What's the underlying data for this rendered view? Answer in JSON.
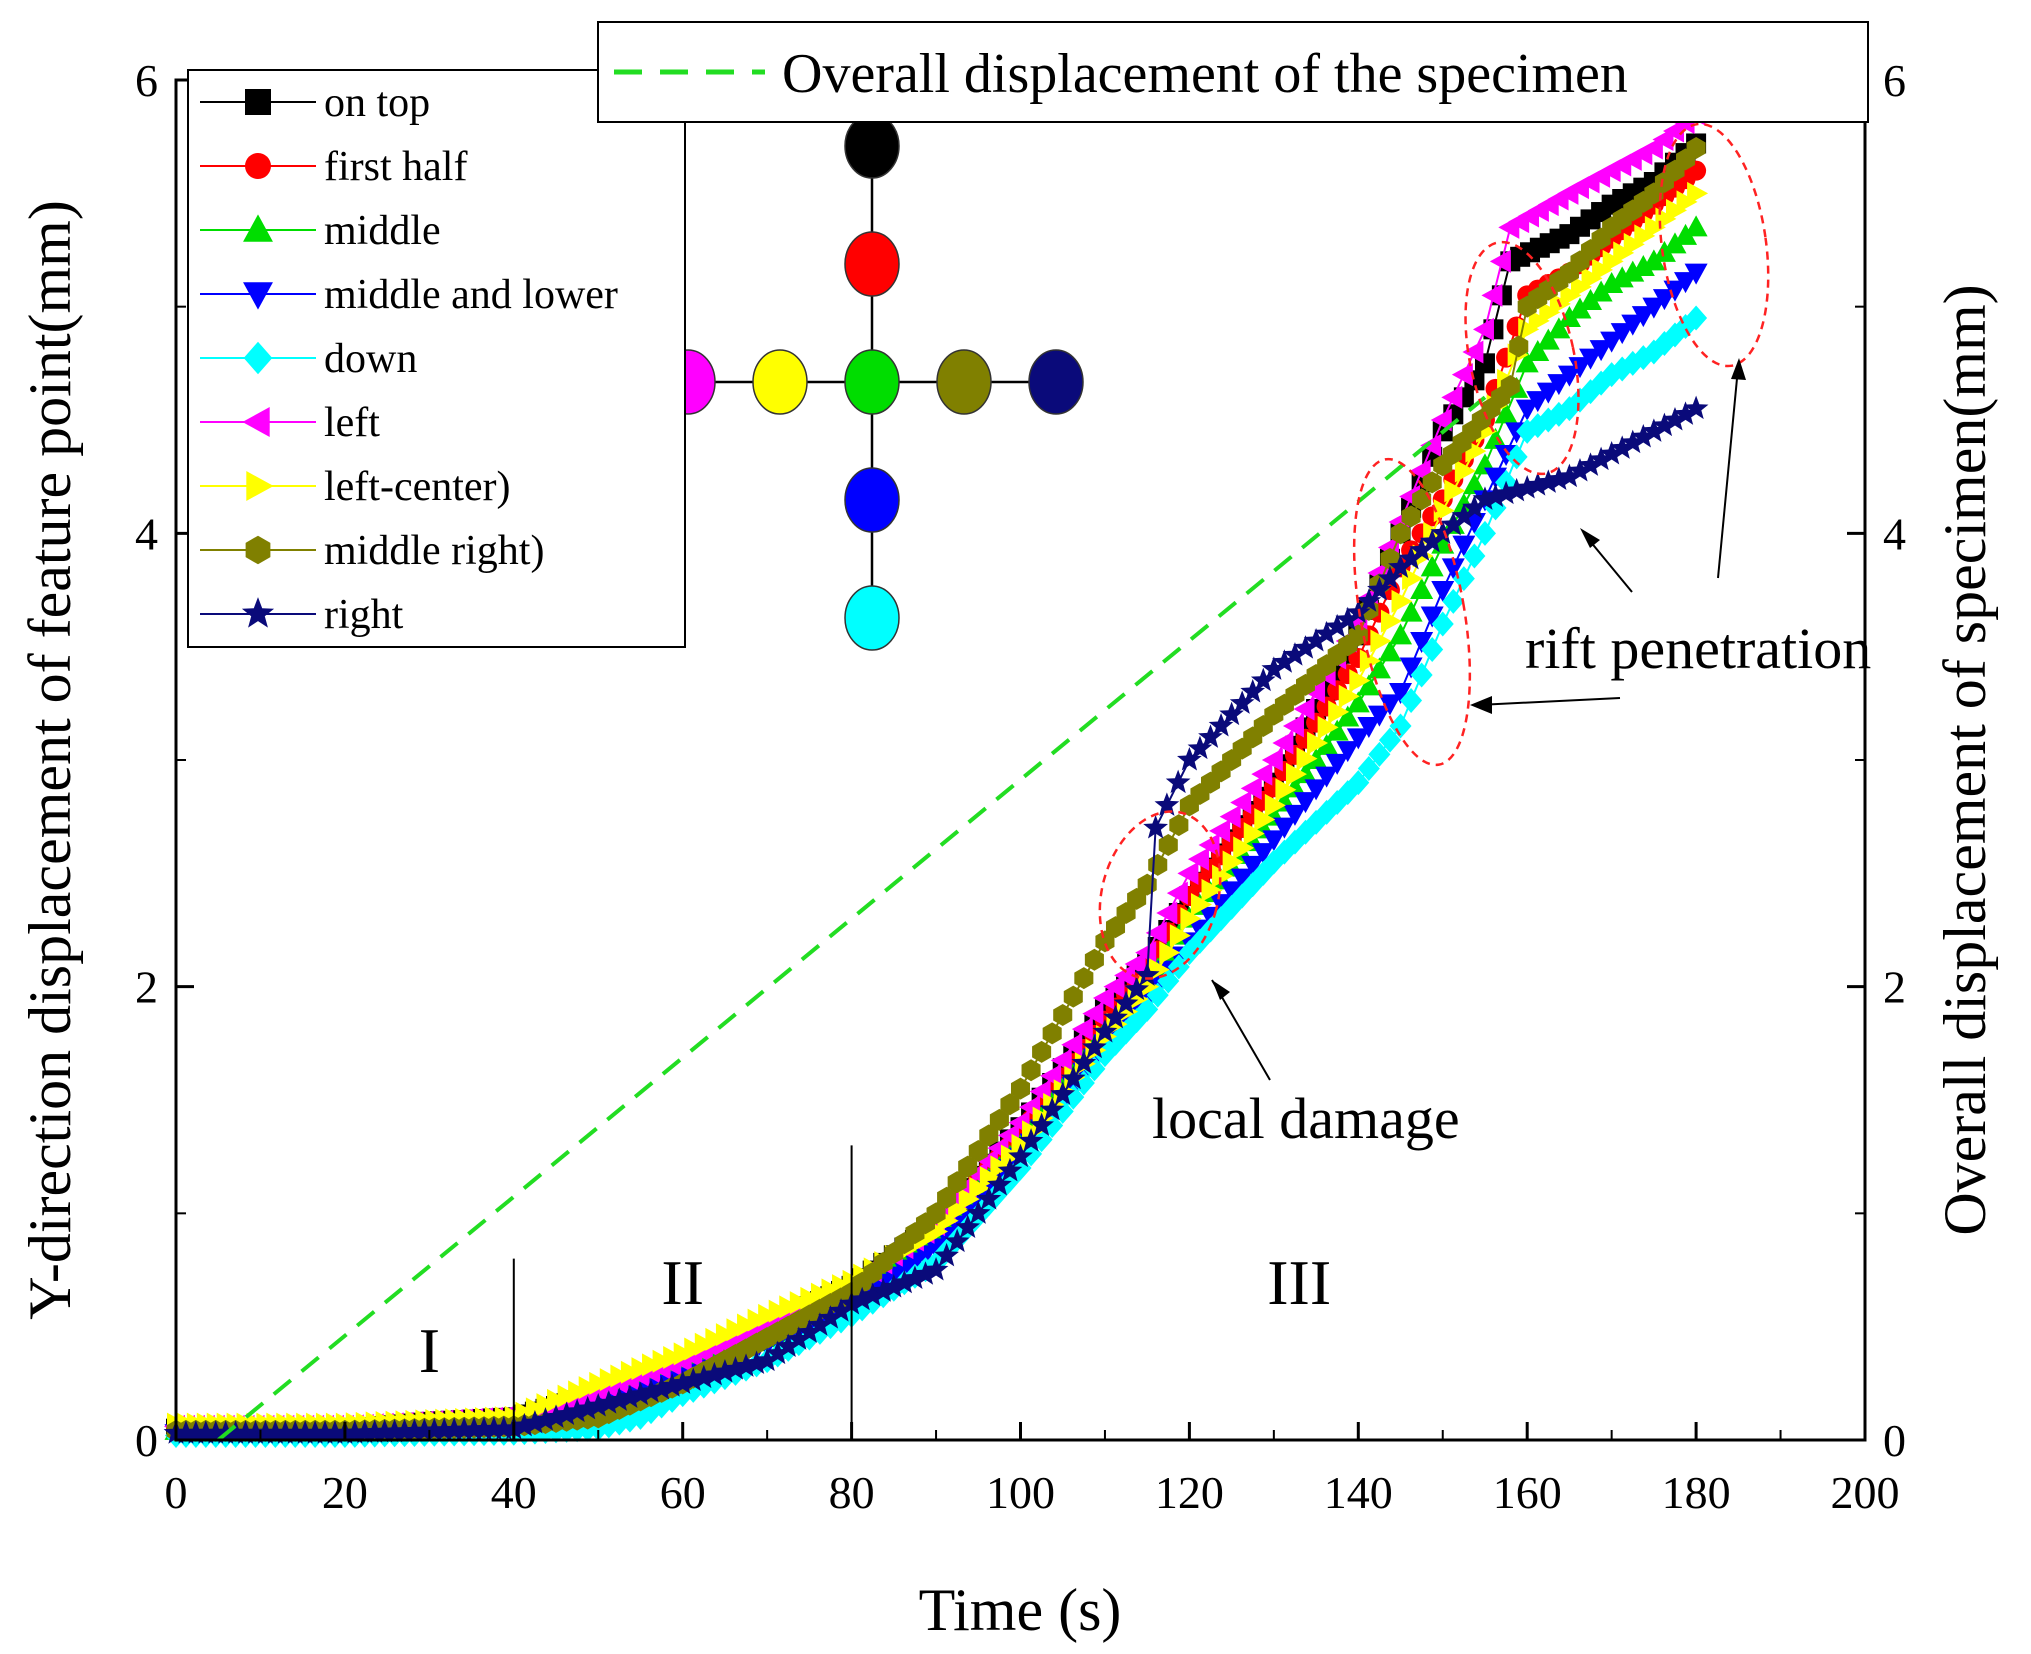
{
  "chart_data": {
    "type": "line",
    "xlabel": "Time (s)",
    "ylabel_left": "Y-direction displacement of feature point(mm)",
    "ylabel_right": "Overall displacement of specimen(mm)",
    "xlim": [
      0,
      200
    ],
    "ylim": [
      0,
      6
    ],
    "ylim_right": [
      0,
      6
    ],
    "xticks": [
      "0",
      "20",
      "40",
      "60",
      "80",
      "100",
      "120",
      "140",
      "160",
      "180",
      "200"
    ],
    "yticks": [
      "0",
      "2",
      "4",
      "6"
    ],
    "yticks_right": [
      "0",
      "2",
      "4",
      "6"
    ],
    "grid": false,
    "legend_position": "top-left",
    "overall_legend": "Overall displacement of the specimen",
    "overall_series": {
      "name": "Overall displacement of the specimen",
      "color": "#22dd22",
      "x": [
        5,
        155
      ],
      "y": [
        0,
        4.6
      ]
    },
    "series": [
      {
        "name": "on top",
        "color": "#000000",
        "marker": "square",
        "x": [
          0,
          20,
          30,
          40,
          50,
          60,
          70,
          80,
          90,
          100,
          110,
          115,
          120,
          130,
          140,
          145,
          150,
          155,
          158,
          165,
          170,
          175,
          180
        ],
        "y": [
          0.05,
          0.05,
          0.08,
          0.1,
          0.2,
          0.33,
          0.5,
          0.68,
          0.95,
          1.38,
          1.9,
          2.1,
          2.4,
          2.9,
          3.55,
          4.0,
          4.45,
          4.75,
          5.2,
          5.32,
          5.45,
          5.55,
          5.72
        ]
      },
      {
        "name": "first half",
        "color": "#ff0000",
        "marker": "circle",
        "x": [
          0,
          20,
          40,
          50,
          60,
          70,
          80,
          90,
          100,
          110,
          115,
          120,
          130,
          140,
          145,
          150,
          155,
          160,
          165,
          170,
          175,
          180
        ],
        "y": [
          0.05,
          0.05,
          0.08,
          0.2,
          0.32,
          0.48,
          0.65,
          0.95,
          1.35,
          1.85,
          2.08,
          2.4,
          2.88,
          3.45,
          3.85,
          4.15,
          4.5,
          5.05,
          5.15,
          5.3,
          5.45,
          5.6
        ]
      },
      {
        "name": "middle",
        "color": "#00dd00",
        "marker": "triangle-up",
        "x": [
          0,
          20,
          40,
          50,
          60,
          70,
          80,
          90,
          100,
          110,
          115,
          120,
          130,
          140,
          145,
          150,
          155,
          160,
          165,
          170,
          175,
          180
        ],
        "y": [
          0.04,
          0.04,
          0.06,
          0.18,
          0.3,
          0.45,
          0.62,
          0.9,
          1.3,
          1.8,
          2.0,
          2.3,
          2.75,
          3.25,
          3.55,
          3.95,
          4.3,
          4.75,
          4.95,
          5.1,
          5.2,
          5.35
        ]
      },
      {
        "name": "middle and lower",
        "color": "#0000ff",
        "marker": "triangle-down",
        "x": [
          0,
          20,
          40,
          50,
          60,
          70,
          80,
          90,
          100,
          110,
          115,
          120,
          130,
          140,
          145,
          150,
          155,
          160,
          165,
          170,
          175,
          180
        ],
        "y": [
          0.03,
          0.03,
          0.05,
          0.15,
          0.28,
          0.42,
          0.6,
          0.85,
          1.25,
          1.75,
          1.95,
          2.2,
          2.65,
          3.1,
          3.3,
          3.75,
          4.15,
          4.55,
          4.7,
          4.85,
          5.0,
          5.15
        ]
      },
      {
        "name": "down",
        "color": "#00ffff",
        "marker": "diamond",
        "x": [
          0,
          20,
          40,
          50,
          55,
          60,
          70,
          80,
          90,
          100,
          110,
          115,
          120,
          130,
          140,
          145,
          150,
          155,
          160,
          165,
          170,
          175,
          180
        ],
        "y": [
          0.02,
          0.02,
          0.03,
          0.05,
          0.1,
          0.2,
          0.35,
          0.55,
          0.78,
          1.2,
          1.7,
          1.9,
          2.15,
          2.55,
          2.9,
          3.15,
          3.6,
          4.0,
          4.45,
          4.55,
          4.7,
          4.8,
          4.95
        ]
      },
      {
        "name": "left",
        "color": "#ff00ff",
        "marker": "triangle-left",
        "x": [
          0,
          20,
          40,
          50,
          60,
          70,
          80,
          90,
          100,
          110,
          115,
          120,
          130,
          140,
          145,
          150,
          155,
          158,
          165,
          170,
          175,
          180
        ],
        "y": [
          0.06,
          0.06,
          0.1,
          0.22,
          0.35,
          0.5,
          0.68,
          0.95,
          1.4,
          1.95,
          2.15,
          2.5,
          3.0,
          3.6,
          4.05,
          4.5,
          4.9,
          5.35,
          5.5,
          5.6,
          5.7,
          5.85
        ]
      },
      {
        "name": "left-center)",
        "color": "#ffff00",
        "marker": "triangle-right",
        "x": [
          0,
          20,
          40,
          50,
          60,
          70,
          80,
          90,
          100,
          110,
          115,
          120,
          130,
          140,
          145,
          150,
          155,
          160,
          165,
          170,
          175,
          180
        ],
        "y": [
          0.07,
          0.07,
          0.1,
          0.25,
          0.38,
          0.55,
          0.7,
          0.92,
          1.3,
          1.78,
          2.0,
          2.3,
          2.8,
          3.35,
          3.7,
          4.1,
          4.45,
          4.9,
          5.05,
          5.2,
          5.35,
          5.5
        ]
      },
      {
        "name": "middle right)",
        "color": "#808000",
        "marker": "hexagon",
        "x": [
          0,
          20,
          40,
          50,
          60,
          70,
          80,
          90,
          100,
          110,
          115,
          120,
          130,
          140,
          145,
          150,
          158,
          160,
          165,
          170,
          175,
          180
        ],
        "y": [
          0.04,
          0.04,
          0.06,
          0.1,
          0.25,
          0.45,
          0.65,
          1.0,
          1.55,
          2.2,
          2.45,
          2.8,
          3.2,
          3.55,
          4.0,
          4.3,
          4.65,
          5.0,
          5.15,
          5.35,
          5.5,
          5.7
        ]
      },
      {
        "name": "right",
        "color": "#0a0a7a",
        "marker": "star",
        "x": [
          0,
          20,
          40,
          50,
          60,
          70,
          80,
          90,
          100,
          110,
          115,
          116,
          120,
          130,
          140,
          145,
          150,
          155,
          160,
          165,
          170,
          175,
          180
        ],
        "y": [
          0.03,
          0.03,
          0.05,
          0.15,
          0.25,
          0.35,
          0.6,
          0.75,
          1.25,
          1.8,
          2.05,
          2.7,
          3.0,
          3.4,
          3.65,
          3.85,
          4.0,
          4.15,
          4.2,
          4.25,
          4.35,
          4.45,
          4.55
        ]
      }
    ],
    "regions": [
      {
        "label": "I",
        "x": 30,
        "y": 0.3
      },
      {
        "label": "II",
        "x": 60,
        "y": 0.6
      },
      {
        "label": "III",
        "x": 133,
        "y": 0.6
      }
    ],
    "region_dividers": [
      40,
      80
    ],
    "annotations": {
      "local_damage": "local damage",
      "rift_penetration": "rift penetration"
    },
    "feature_points": {
      "vertical": [
        "#000000",
        "#ff0000",
        "#00dd00",
        "#0000ff",
        "#00ffff"
      ],
      "horizontal": [
        "#ff00ff",
        "#ffff00",
        "#00dd00",
        "#808000",
        "#0a0a7a"
      ]
    }
  }
}
